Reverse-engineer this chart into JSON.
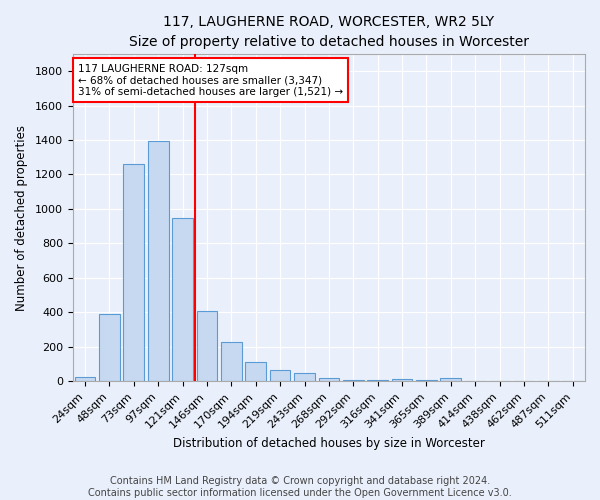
{
  "title": "117, LAUGHERNE ROAD, WORCESTER, WR2 5LY",
  "subtitle": "Size of property relative to detached houses in Worcester",
  "xlabel": "Distribution of detached houses by size in Worcester",
  "ylabel": "Number of detached properties",
  "bar_color": "#c6d9f1",
  "bar_edgecolor": "#5b9bd5",
  "background_color": "#eaf0fb",
  "grid_color": "#ffffff",
  "categories": [
    "24sqm",
    "48sqm",
    "73sqm",
    "97sqm",
    "121sqm",
    "146sqm",
    "170sqm",
    "194sqm",
    "219sqm",
    "243sqm",
    "268sqm",
    "292sqm",
    "316sqm",
    "341sqm",
    "365sqm",
    "389sqm",
    "414sqm",
    "438sqm",
    "462sqm",
    "487sqm",
    "511sqm"
  ],
  "values": [
    25,
    390,
    1260,
    1395,
    950,
    410,
    228,
    113,
    65,
    48,
    17,
    10,
    8,
    13,
    5,
    20,
    0,
    0,
    0,
    0,
    0
  ],
  "ylim": [
    0,
    1900
  ],
  "yticks": [
    0,
    200,
    400,
    600,
    800,
    1000,
    1200,
    1400,
    1600,
    1800
  ],
  "vline_index": 4.5,
  "vline_color": "red",
  "annotation_line1": "117 LAUGHERNE ROAD: 127sqm",
  "annotation_line2": "← 68% of detached houses are smaller (3,347)",
  "annotation_line3": "31% of semi-detached houses are larger (1,521) →",
  "annotation_box_color": "white",
  "annotation_box_edgecolor": "red",
  "title_fontsize": 10,
  "subtitle_fontsize": 9,
  "axis_label_fontsize": 8.5,
  "tick_fontsize": 8,
  "annotation_fontsize": 7.5,
  "footer_text": "Contains HM Land Registry data © Crown copyright and database right 2024.\nContains public sector information licensed under the Open Government Licence v3.0.",
  "footer_fontsize": 7
}
